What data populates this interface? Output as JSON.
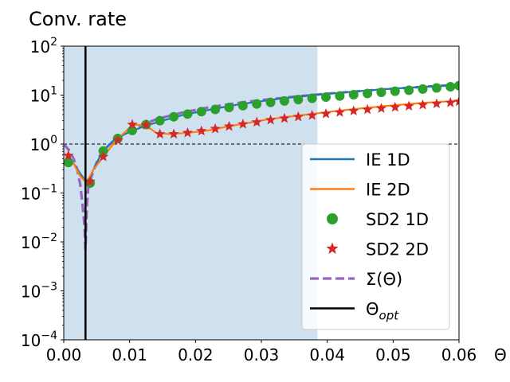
{
  "chart_data": {
    "type": "line",
    "title": "Conv. rate",
    "xlabel": "Θ",
    "ylabel": "",
    "xlim": [
      0.0,
      0.06
    ],
    "ylim_log10": [
      -4,
      2
    ],
    "yscale": "log",
    "x_ticks": [
      0.0,
      0.01,
      0.02,
      0.03,
      0.04,
      0.05,
      0.06
    ],
    "x_tick_labels": [
      "0.00",
      "0.01",
      "0.02",
      "0.03",
      "0.04",
      "0.05",
      "0.06"
    ],
    "y_ticks": [
      {
        "base": "10",
        "exp": "2",
        "value": 100
      },
      {
        "base": "10",
        "exp": "1",
        "value": 10
      },
      {
        "base": "10",
        "exp": "0",
        "value": 1
      },
      {
        "base": "10",
        "exp": "−1",
        "value": 0.1
      },
      {
        "base": "10",
        "exp": "−2",
        "value": 0.01
      },
      {
        "base": "10",
        "exp": "−3",
        "value": 0.001
      },
      {
        "base": "10",
        "exp": "−4",
        "value": 0.0001
      }
    ],
    "shaded_region": {
      "x_from": 0.0,
      "x_to": 0.0385,
      "color": "#cfe0ee"
    },
    "reference_line_y": 1.0,
    "theta_opt": 0.0033,
    "legend_position": "lower-right",
    "series": [
      {
        "name": "IE 1D",
        "label_main": "IE 1D",
        "style": "line",
        "color": "#1f77b4",
        "x": [
          0.0007,
          0.0015,
          0.0025,
          0.0033,
          0.0038,
          0.0045,
          0.006,
          0.008,
          0.011,
          0.013,
          0.015,
          0.018,
          0.021,
          0.024,
          0.027,
          0.03,
          0.033,
          0.036,
          0.039,
          0.042,
          0.045,
          0.048,
          0.051,
          0.054,
          0.057,
          0.06
        ],
        "y": [
          0.45,
          0.4,
          0.25,
          0.18,
          0.18,
          0.3,
          0.75,
          1.35,
          2.0,
          2.5,
          3.0,
          3.9,
          4.7,
          5.6,
          6.6,
          7.5,
          8.5,
          9.4,
          10.3,
          11.2,
          12.1,
          13.0,
          13.8,
          14.6,
          15.4,
          16.2
        ]
      },
      {
        "name": "IE 2D",
        "label_main": "IE 2D",
        "style": "line",
        "color": "#ff7f0e",
        "x": [
          0.0007,
          0.0015,
          0.0025,
          0.0033,
          0.0038,
          0.0045,
          0.006,
          0.008,
          0.0105,
          0.0125,
          0.014,
          0.016,
          0.019,
          0.022,
          0.025,
          0.028,
          0.031,
          0.034,
          0.037,
          0.04,
          0.043,
          0.046,
          0.049,
          0.052,
          0.055,
          0.058,
          0.06
        ],
        "y": [
          0.55,
          0.4,
          0.22,
          0.17,
          0.2,
          0.3,
          0.55,
          1.2,
          2.5,
          2.4,
          1.7,
          1.6,
          1.7,
          1.9,
          2.3,
          2.7,
          3.2,
          3.6,
          4.0,
          4.5,
          5.0,
          5.5,
          6.0,
          6.5,
          7.0,
          7.4,
          7.7
        ]
      },
      {
        "name": "SD2 1D",
        "label_main": "SD2 1D",
        "style": "markers-circle",
        "color": "#2ca02c",
        "x": [
          0.0007,
          0.004,
          0.006,
          0.0082,
          0.0104,
          0.0125,
          0.0146,
          0.0167,
          0.0188,
          0.0209,
          0.023,
          0.0251,
          0.0272,
          0.0293,
          0.0314,
          0.0335,
          0.0356,
          0.0377,
          0.0398,
          0.0419,
          0.044,
          0.0461,
          0.0482,
          0.0503,
          0.0524,
          0.0545,
          0.0566,
          0.0587,
          0.06
        ],
        "y": [
          0.42,
          0.16,
          0.72,
          1.3,
          1.9,
          2.5,
          3.0,
          3.6,
          4.1,
          4.6,
          5.1,
          5.6,
          6.1,
          6.6,
          7.1,
          7.6,
          8.1,
          8.6,
          9.1,
          9.6,
          10.2,
          10.8,
          11.4,
          12.0,
          12.6,
          13.3,
          14.0,
          14.8,
          15.6
        ]
      },
      {
        "name": "SD2 2D",
        "label_main": "SD2 2D",
        "style": "markers-star",
        "color": "#d62728",
        "x": [
          0.0007,
          0.004,
          0.006,
          0.0082,
          0.0104,
          0.0125,
          0.0146,
          0.0167,
          0.0188,
          0.0209,
          0.023,
          0.0251,
          0.0272,
          0.0293,
          0.0314,
          0.0335,
          0.0356,
          0.0377,
          0.0398,
          0.0419,
          0.044,
          0.0461,
          0.0482,
          0.0503,
          0.0524,
          0.0545,
          0.0566,
          0.0587,
          0.06
        ],
        "y": [
          0.58,
          0.17,
          0.55,
          1.2,
          2.5,
          2.45,
          1.6,
          1.6,
          1.7,
          1.85,
          2.05,
          2.3,
          2.55,
          2.8,
          3.1,
          3.35,
          3.6,
          3.85,
          4.15,
          4.45,
          4.75,
          5.05,
          5.35,
          5.65,
          5.95,
          6.3,
          6.65,
          7.0,
          7.4
        ]
      },
      {
        "name": "Σ(Θ)",
        "label_main": "Σ(Θ)",
        "style": "dashed",
        "color": "#9467bd",
        "x": [
          0.0,
          0.0008,
          0.0015,
          0.002,
          0.0025,
          0.0029,
          0.0031,
          0.0032,
          0.00325,
          0.0033,
          0.00335,
          0.0034,
          0.0035,
          0.0037,
          0.004,
          0.0045,
          0.005,
          0.0055,
          0.006,
          0.007,
          0.008,
          0.009,
          0.011,
          0.014,
          0.018,
          0.022,
          0.026,
          0.03,
          0.035,
          0.04,
          0.045,
          0.05,
          0.055,
          0.06
        ],
        "y": [
          1.0,
          0.75,
          0.5,
          0.32,
          0.15,
          0.05,
          0.025,
          0.015,
          0.01,
          0.007,
          0.01,
          0.02,
          0.05,
          0.12,
          0.18,
          0.28,
          0.42,
          0.56,
          0.72,
          0.98,
          1.2,
          1.55,
          2.2,
          3.2,
          4.4,
          5.6,
          6.8,
          7.9,
          9.3,
          10.7,
          12.1,
          13.5,
          14.9,
          16.3
        ]
      },
      {
        "name": "Θopt",
        "label_main": "Θ",
        "label_sub": "opt",
        "style": "vline",
        "color": "#000000"
      }
    ]
  }
}
